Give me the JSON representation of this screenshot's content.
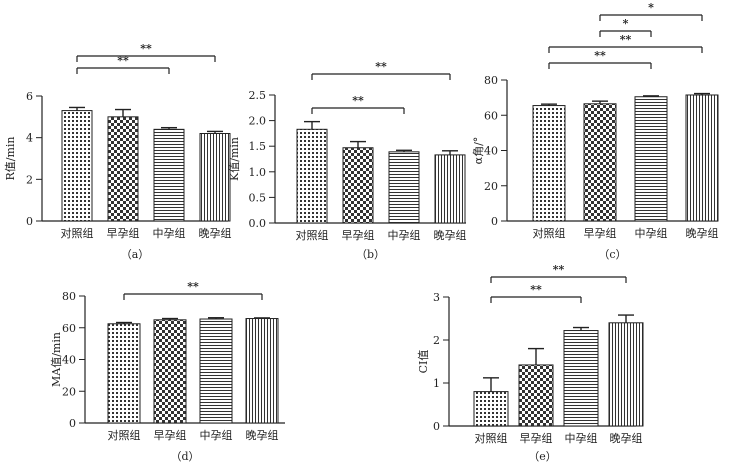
{
  "colors": {
    "axis": "#222222",
    "bar_fill": "#ffffff",
    "pattern_ink": "#333333",
    "text": "#222222"
  },
  "chart_data": [
    {
      "id": "a",
      "type": "bar",
      "caption": "（a）",
      "ylabel": "R值/min",
      "categories": [
        "对照组",
        "早孕组",
        "中孕组",
        "晚孕组"
      ],
      "patterns": [
        "dots",
        "checker",
        "hlines",
        "vlines"
      ],
      "values": [
        5.3,
        5.0,
        4.4,
        4.2
      ],
      "errors": [
        0.15,
        0.35,
        0.08,
        0.1
      ],
      "ylim": [
        0,
        6
      ],
      "yticks": [
        0,
        2,
        4,
        6
      ],
      "ytick_labels": [
        "0",
        "2",
        "4",
        "6"
      ],
      "grid": false,
      "significance": [
        {
          "from": 0,
          "to": 2,
          "label": "**"
        },
        {
          "from": 0,
          "to": 3,
          "label": "**"
        }
      ]
    },
    {
      "id": "b",
      "type": "bar",
      "caption": "（b）",
      "ylabel": "K值/min",
      "categories": [
        "对照组",
        "早孕组",
        "中孕组",
        "晚孕组"
      ],
      "patterns": [
        "dots",
        "checker",
        "hlines",
        "vlines"
      ],
      "values": [
        1.83,
        1.47,
        1.39,
        1.33
      ],
      "errors": [
        0.15,
        0.12,
        0.03,
        0.08
      ],
      "ylim": [
        0,
        2.5
      ],
      "yticks": [
        0,
        0.5,
        1,
        1.5,
        2,
        2.5
      ],
      "ytick_labels": [
        "0.0",
        "0.5",
        "1.0",
        "1.5",
        "2.0",
        "2.5"
      ],
      "grid": false,
      "significance": [
        {
          "from": 0,
          "to": 2,
          "label": "**"
        },
        {
          "from": 0,
          "to": 3,
          "label": "**"
        }
      ]
    },
    {
      "id": "c",
      "type": "bar",
      "caption": "（c）",
      "ylabel": "α角/°",
      "categories": [
        "对照组",
        "早孕组",
        "中孕组",
        "晚孕组"
      ],
      "patterns": [
        "dots",
        "checker",
        "hlines",
        "vlines"
      ],
      "values": [
        65.5,
        66.5,
        70.5,
        71.5
      ],
      "errors": [
        0.8,
        1.5,
        0.5,
        0.8
      ],
      "ylim": [
        0,
        80
      ],
      "yticks": [
        0,
        20,
        40,
        60,
        80
      ],
      "ytick_labels": [
        "0",
        "20",
        "40",
        "60",
        "80"
      ],
      "grid": false,
      "significance": [
        {
          "from": 0,
          "to": 2,
          "label": "**"
        },
        {
          "from": 0,
          "to": 3,
          "label": "**"
        },
        {
          "from": 1,
          "to": 2,
          "label": "*"
        },
        {
          "from": 1,
          "to": 3,
          "label": "*"
        }
      ]
    },
    {
      "id": "d",
      "type": "bar",
      "caption": "（d）",
      "ylabel": "MA值/min",
      "categories": [
        "对照组",
        "早孕组",
        "中孕组",
        "晚孕组"
      ],
      "patterns": [
        "dots",
        "checker",
        "hlines",
        "vlines"
      ],
      "values": [
        62.5,
        65.0,
        65.5,
        65.8
      ],
      "errors": [
        0.8,
        0.8,
        0.8,
        0.4
      ],
      "ylim": [
        0,
        80
      ],
      "yticks": [
        0,
        20,
        40,
        60,
        80
      ],
      "ytick_labels": [
        "0",
        "20",
        "40",
        "60",
        "80"
      ],
      "grid": false,
      "significance": [
        {
          "from": 0,
          "to": 3,
          "label": "**"
        }
      ]
    },
    {
      "id": "e",
      "type": "bar",
      "caption": "（e）",
      "ylabel": "CI值",
      "categories": [
        "对照组",
        "早孕组",
        "中孕组",
        "晚孕组"
      ],
      "patterns": [
        "dots",
        "checker",
        "hlines",
        "vlines"
      ],
      "values": [
        0.8,
        1.42,
        2.22,
        2.4
      ],
      "errors": [
        0.32,
        0.38,
        0.07,
        0.18
      ],
      "ylim": [
        0,
        3
      ],
      "yticks": [
        0,
        1,
        2,
        3
      ],
      "ytick_labels": [
        "0",
        "1",
        "2",
        "3"
      ],
      "grid": false,
      "significance": [
        {
          "from": 0,
          "to": 2,
          "label": "**"
        },
        {
          "from": 0,
          "to": 3,
          "label": "**"
        }
      ]
    }
  ]
}
